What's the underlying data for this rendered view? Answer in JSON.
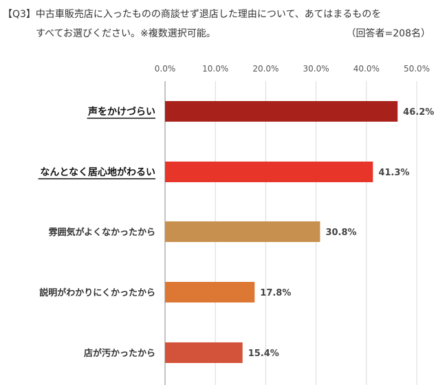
{
  "question": {
    "line1": "【Q3】中古車販売店に入ったものの商談せず退店した理由について、あてはまるものを",
    "line2": "すべてお選びください。※複数選択可能。",
    "respondents": "（回答者=208名）"
  },
  "chart_data": {
    "type": "bar",
    "orientation": "horizontal",
    "title": "",
    "xlabel": "",
    "ylabel": "",
    "xlim": [
      0,
      50
    ],
    "tick_labels": [
      "0.0%",
      "10.0%",
      "20.0%",
      "30.0%",
      "40.0%",
      "50.0%"
    ],
    "grid": true,
    "legend": "none",
    "categories": [
      "声をかけづらい",
      "なんとなく居心地がわるい",
      "雰囲気がよくなかったから",
      "説明がわかりにくかったから",
      "店が汚かったから"
    ],
    "values": [
      46.2,
      41.3,
      30.8,
      17.8,
      15.4
    ],
    "value_labels": [
      "46.2%",
      "41.3%",
      "30.8%",
      "17.8%",
      "15.4%"
    ],
    "highlighted": [
      true,
      true,
      false,
      false,
      false
    ],
    "colors": [
      "#a8221b",
      "#e8352a",
      "#c8904e",
      "#dd7834",
      "#d2533a"
    ]
  }
}
